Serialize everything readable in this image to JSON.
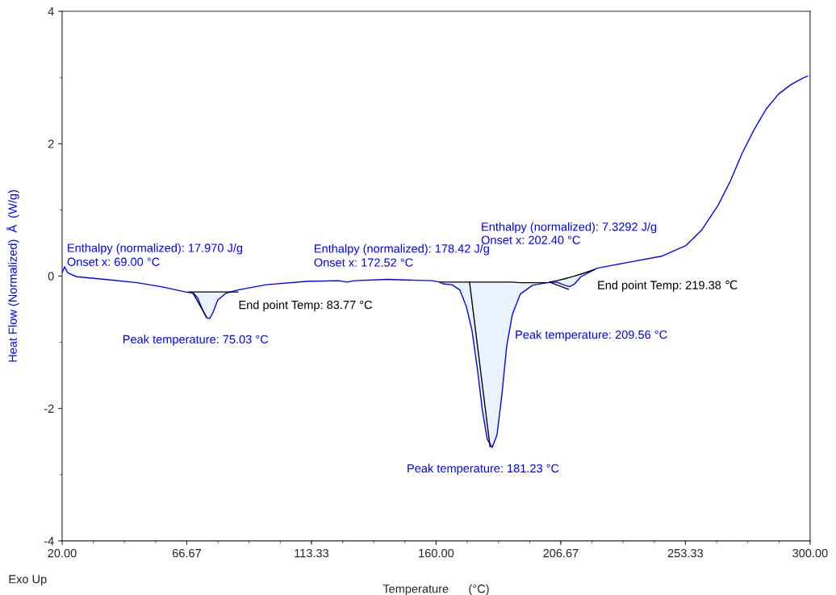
{
  "chart_data": {
    "type": "line",
    "xlabel": "Temperature      (°C)",
    "ylabel": "Heat Flow (Normalized)  Å  (W/g)",
    "xlim": [
      20,
      300
    ],
    "ylim": [
      -4,
      4
    ],
    "xticks": [
      {
        "value": 20,
        "label": "20.00"
      },
      {
        "value": 66.67,
        "label": "66.67"
      },
      {
        "value": 113.33,
        "label": "113.33"
      },
      {
        "value": 160,
        "label": "160.00"
      },
      {
        "value": 206.67,
        "label": "206.67"
      },
      {
        "value": 253.33,
        "label": "253.33"
      },
      {
        "value": 300,
        "label": "300.00"
      }
    ],
    "yticks": [
      -4,
      -2,
      0,
      2,
      4
    ],
    "grid": false,
    "marker": "none",
    "line_style": "solid",
    "series": [
      {
        "color": "#0000ff",
        "x": [
          20,
          20.91,
          22.11,
          25.44,
          36.01,
          48.09,
          57.15,
          66.21,
          69.23,
          70.74,
          72.25,
          74.07,
          75.27,
          76.48,
          78.29,
          81.31,
          85.84,
          96.42,
          111.52,
          123.6,
          126.62,
          129.64,
          141.72,
          158.33,
          161.35,
          162.86,
          165.88,
          168.9,
          171.32,
          173.43,
          175.55,
          177.36,
          179.17,
          180.99,
          182.8,
          184.61,
          186.43,
          188.54,
          191.56,
          196.09,
          201.53,
          205.15,
          208.17,
          209.98,
          211.8,
          214.22,
          220.26,
          232.34,
          244.42,
          253.48,
          259.52,
          265.56,
          270.09,
          274.62,
          279.15,
          283.68,
          288.21,
          292.74,
          297.27,
          299.08
        ],
        "values": [
          0.05,
          0.14,
          0.05,
          -0.01,
          -0.05,
          -0.1,
          -0.16,
          -0.24,
          -0.26,
          -0.33,
          -0.48,
          -0.63,
          -0.64,
          -0.55,
          -0.36,
          -0.26,
          -0.21,
          -0.13,
          -0.08,
          -0.07,
          -0.09,
          -0.07,
          -0.05,
          -0.07,
          -0.09,
          -0.12,
          -0.13,
          -0.21,
          -0.46,
          -0.82,
          -1.43,
          -2.04,
          -2.47,
          -2.59,
          -2.4,
          -1.8,
          -1.06,
          -0.58,
          -0.27,
          -0.14,
          -0.1,
          -0.09,
          -0.14,
          -0.16,
          -0.12,
          -0.01,
          0.12,
          0.21,
          0.3,
          0.46,
          0.7,
          1.07,
          1.43,
          1.86,
          2.22,
          2.53,
          2.75,
          2.89,
          2.99,
          3.02
        ]
      },
      {
        "color": "#000000",
        "x": [
          67,
          69.23,
          70.74,
          72.25,
          74.07,
          75.27,
          76.48,
          78.29,
          81.31,
          85.84
        ],
        "values": [
          -0.24,
          -0.24,
          -0.24,
          -0.24,
          -0.24,
          -0.24,
          -0.24,
          -0.24,
          -0.24,
          -0.24
        ],
        "lower": [
          -0.24,
          -0.26,
          -0.33,
          -0.48,
          -0.63,
          -0.64,
          -0.55,
          -0.36,
          -0.26,
          -0.24
        ],
        "upper": [
          -0.24,
          -0.24,
          -0.24,
          -0.24,
          -0.24,
          -0.24,
          -0.24,
          -0.24,
          -0.24,
          -0.24
        ]
      },
      {
        "color": "#000000",
        "x": [
          161.35,
          162.86,
          165.88,
          168.9,
          171.32,
          173.43,
          175.55,
          177.36,
          179.17,
          180.99,
          182.8,
          184.61,
          186.43,
          188.54,
          191.56,
          196.09,
          201.53
        ],
        "values": [
          -0.09,
          -0.09,
          -0.09,
          -0.09,
          -0.09,
          -0.09,
          -0.09,
          -0.09,
          -0.09,
          -0.09,
          -0.09,
          -0.09,
          -0.09,
          -0.09,
          -0.1,
          -0.1,
          -0.1
        ],
        "lower": [
          -0.09,
          -0.12,
          -0.13,
          -0.21,
          -0.46,
          -0.82,
          -1.43,
          -2.04,
          -2.47,
          -2.59,
          -2.4,
          -1.8,
          -1.06,
          -0.58,
          -0.27,
          -0.14,
          -0.1
        ],
        "upper": [
          -0.09,
          -0.09,
          -0.09,
          -0.09,
          -0.09,
          -0.09,
          -0.09,
          -0.09,
          -0.09,
          -0.09,
          -0.09,
          -0.09,
          -0.09,
          -0.09,
          -0.1,
          -0.1,
          -0.1
        ]
      },
      {
        "color": "#000000",
        "x": [
          202.4,
          205.15,
          208.17,
          209.98,
          211.8,
          214.22,
          219.38
        ],
        "values": [
          -0.09,
          -0.07,
          -0.04,
          -0.02,
          0.0,
          0.03,
          0.1
        ],
        "lower": [
          -0.09,
          -0.09,
          -0.14,
          -0.16,
          -0.12,
          -0.01,
          0.1
        ],
        "upper": [
          -0.09,
          -0.07,
          -0.04,
          -0.02,
          0.0,
          0.03,
          0.1
        ]
      },
      {
        "color": "#000000",
        "x": [
          69.0,
          74.07
        ],
        "values": [
          -0.26,
          -0.62
        ]
      },
      {
        "color": "#000000",
        "x": [
          172.52,
          180.2
        ],
        "values": [
          -0.09,
          -2.58
        ]
      },
      {
        "color": "#000000",
        "x": [
          202.4,
          209.56
        ],
        "values": [
          -0.09,
          -0.2
        ]
      }
    ],
    "annotations": [
      "Enthalpy (normalized): 17.970 J/g",
      "Onset x: 69.00 °C",
      "End point Temp: 83.77 °C",
      "Peak temperature: 75.03 °C",
      "Enthalpy (normalized): 178.42 J/g",
      "Onset x: 172.52 °C",
      "Peak temperature: 181.23 °C",
      "Enthalpy (normalized): 7.3292 J/g",
      "Onset x: 202.40 °C",
      "End point Temp: 219.38 ℃",
      "Peak temperature: 209.56 °C",
      "Exo Up"
    ]
  }
}
